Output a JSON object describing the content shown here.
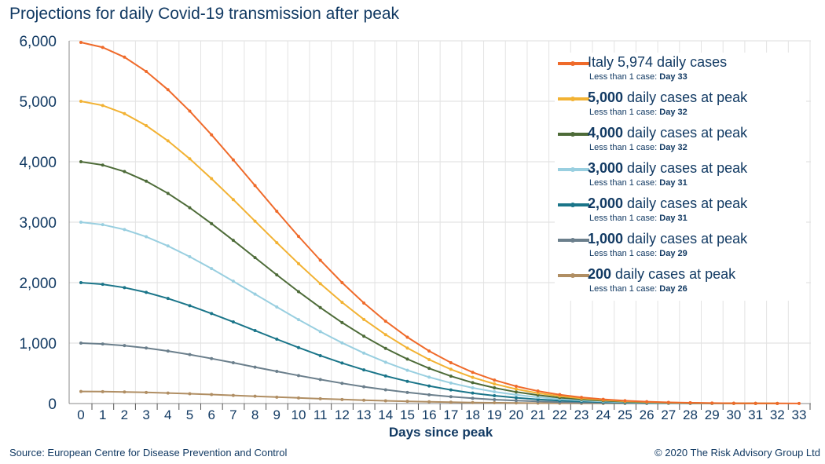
{
  "title": "Projections for daily Covid-19 transmission after peak",
  "footer": {
    "source": "Source: European Centre for Disease Prevention and Control",
    "copyright": "© 2020 The Risk Advisory Group Ltd"
  },
  "chart_data": {
    "type": "line",
    "title": "Projections for daily Covid-19 transmission after peak",
    "xlabel": "Days since peak",
    "ylabel": "",
    "xlim": [
      0,
      33
    ],
    "ylim": [
      0,
      6000
    ],
    "yticks": [
      "0",
      "1,000",
      "2,000",
      "3,000",
      "4,000",
      "5,000",
      "6,000"
    ],
    "grid": true,
    "legend_position": "top-right",
    "series": [
      {
        "label_bold": "",
        "label_rest": "Italy 5,974 daily cases",
        "sub_label": "Less than 1 case:",
        "sub_value": "Day 33",
        "peak": 5974,
        "last_day": 33,
        "color": "#ef6a2a",
        "values": [
          5974,
          5892,
          5730,
          5493,
          5191,
          4837,
          4445,
          4031,
          3605,
          3180,
          2765,
          2370,
          2000,
          1663,
          1362,
          1097,
          869,
          676,
          517,
          388,
          286,
          207,
          147,
          103,
          70,
          47,
          31,
          20,
          13,
          8,
          5,
          3,
          2,
          1
        ]
      },
      {
        "label_bold": "5,000",
        "label_rest": " daily cases at peak",
        "sub_label": "Less than 1 case:",
        "sub_value": "Day 32",
        "peak": 5000,
        "last_day": 32,
        "color": "#f2b233",
        "values": [
          5000,
          4931,
          4796,
          4597,
          4345,
          4048,
          3720,
          3374,
          3017,
          2661,
          2314,
          1983,
          1674,
          1392,
          1140,
          918,
          727,
          566,
          433,
          325,
          239,
          173,
          123,
          86,
          59,
          39,
          26,
          17,
          11,
          7,
          4,
          3,
          2
        ]
      },
      {
        "label_bold": "4,000",
        "label_rest": " daily cases at peak",
        "sub_label": "Less than 1 case:",
        "sub_value": "Day 32",
        "peak": 4000,
        "last_day": 32,
        "color": "#4d6b38",
        "values": [
          4000,
          3945,
          3837,
          3678,
          3476,
          3239,
          2976,
          2699,
          2414,
          2129,
          1851,
          1587,
          1339,
          1114,
          912,
          735,
          582,
          453,
          346,
          260,
          191,
          139,
          98,
          69,
          47,
          31,
          21,
          13,
          9,
          5,
          3,
          2,
          1
        ]
      },
      {
        "label_bold": "3,000",
        "label_rest": " daily cases at peak",
        "sub_label": "Less than 1 case:",
        "sub_value": "Day 31",
        "peak": 3000,
        "last_day": 31,
        "color": "#99cfe0",
        "values": [
          3000,
          2959,
          2878,
          2759,
          2607,
          2429,
          2232,
          2024,
          1810,
          1597,
          1388,
          1190,
          1004,
          835,
          684,
          551,
          436,
          340,
          260,
          195,
          144,
          104,
          74,
          52,
          35,
          24,
          16,
          10,
          6,
          4,
          3,
          2
        ]
      },
      {
        "label_bold": "2,000",
        "label_rest": " daily cases at peak",
        "sub_label": "Less than 1 case:",
        "sub_value": "Day 31",
        "peak": 2000,
        "last_day": 31,
        "color": "#1a7589",
        "values": [
          2000,
          1973,
          1918,
          1839,
          1738,
          1619,
          1488,
          1350,
          1207,
          1065,
          926,
          793,
          670,
          557,
          456,
          367,
          291,
          226,
          173,
          130,
          96,
          69,
          49,
          35,
          24,
          16,
          10,
          7,
          4,
          3,
          2,
          1
        ]
      },
      {
        "label_bold": "1,000",
        "label_rest": " daily cases at peak",
        "sub_label": "Less than 1 case:",
        "sub_value": "Day 29",
        "peak": 1000,
        "last_day": 29,
        "color": "#6b7f8c",
        "values": [
          1000,
          986,
          959,
          919,
          869,
          810,
          744,
          675,
          603,
          532,
          463,
          397,
          335,
          278,
          228,
          184,
          145,
          113,
          87,
          65,
          48,
          35,
          25,
          17,
          12,
          8,
          5,
          3,
          2,
          1
        ]
      },
      {
        "label_bold": "200",
        "label_rest": " daily cases at peak",
        "sub_label": "Less than 1 case:",
        "sub_value": "Day 26",
        "peak": 200,
        "last_day": 26,
        "color": "#b08e63",
        "values": [
          200,
          197,
          192,
          184,
          174,
          162,
          149,
          135,
          121,
          106,
          93,
          79,
          67,
          56,
          46,
          37,
          29,
          23,
          17,
          13,
          10,
          7,
          5,
          3,
          2,
          2,
          1
        ]
      }
    ]
  }
}
